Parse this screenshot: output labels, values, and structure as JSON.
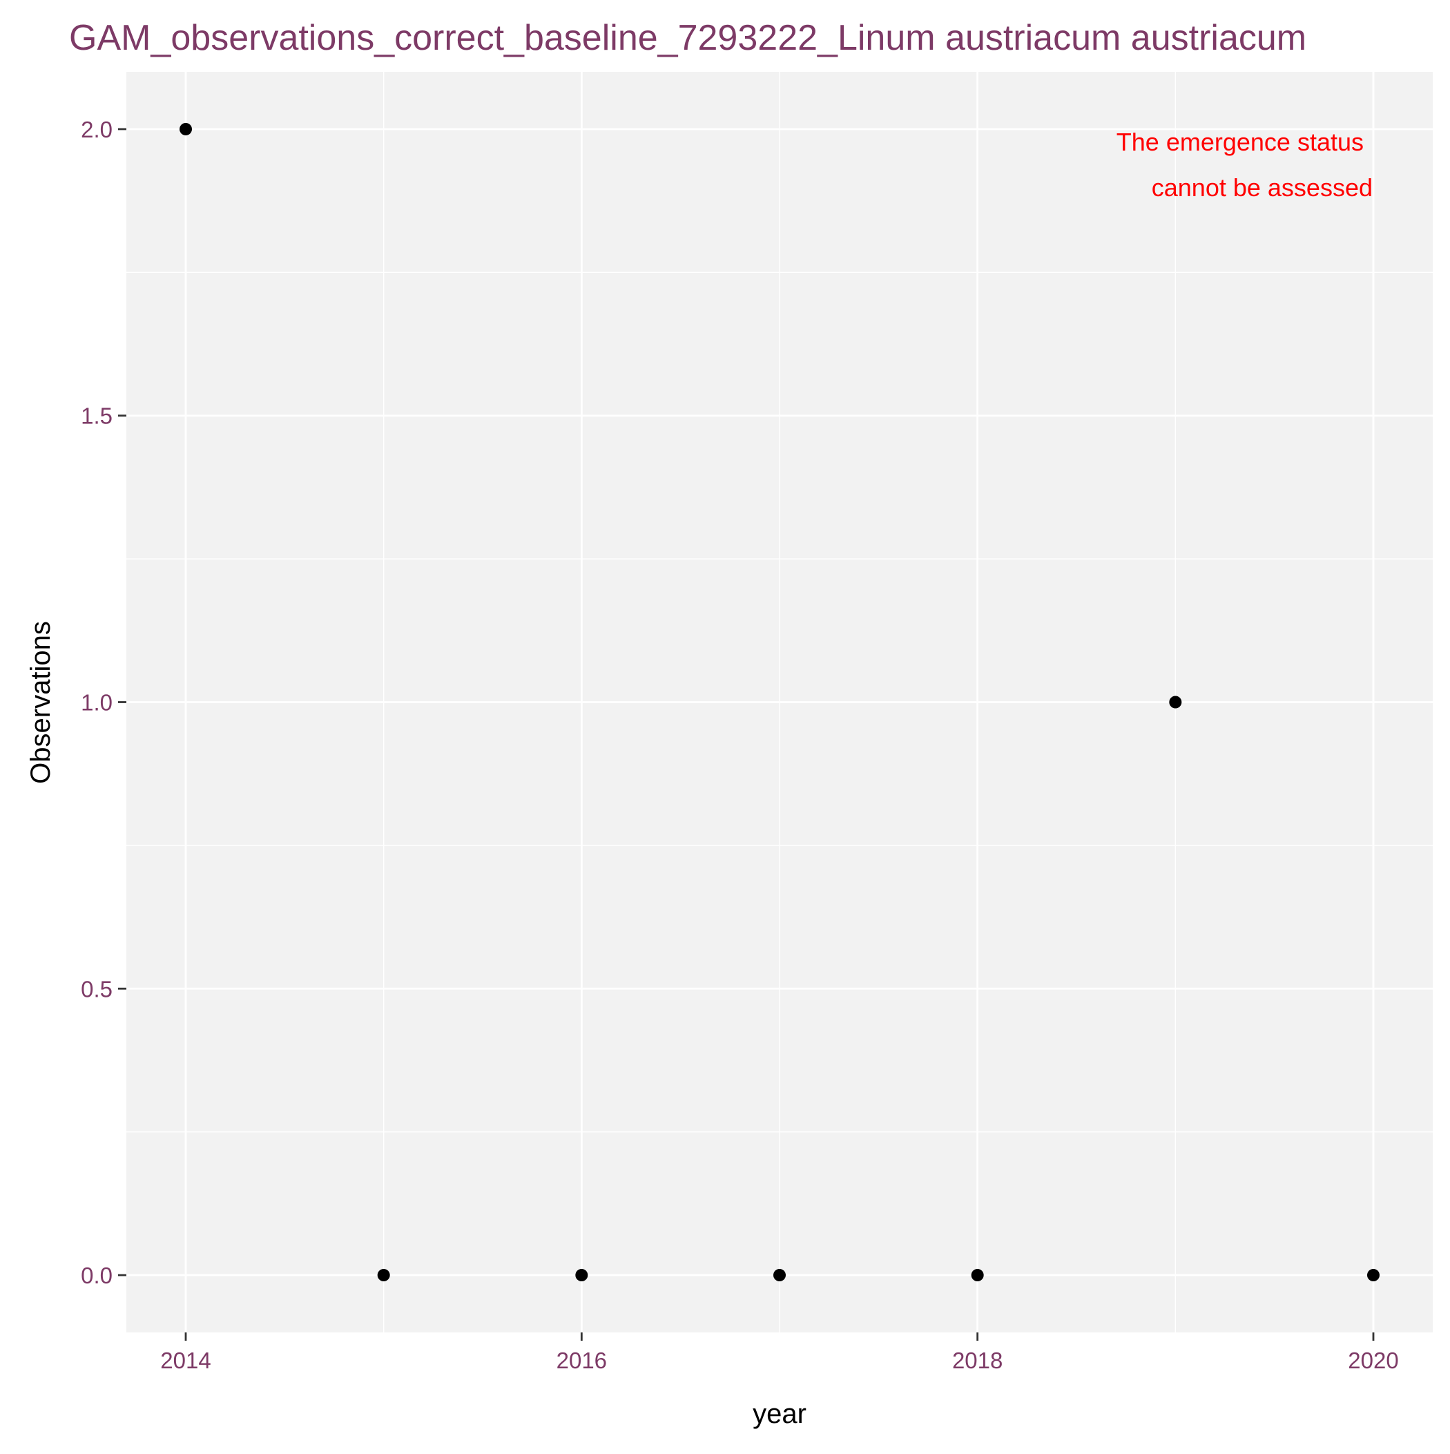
{
  "colors": {
    "title": "#7d3a66",
    "tick_label": "#7d3a66",
    "panel_background": "#f2f2f2",
    "grid": "#ffffff",
    "point": "#000000",
    "annotation": "#ff0000",
    "axis_title": "#000000"
  },
  "chart_data": {
    "type": "scatter",
    "title": "GAM_observations_correct_baseline_7293222_Linum austriacum austriacum",
    "xlabel": "year",
    "ylabel": "Observations",
    "x": [
      2014,
      2015,
      2016,
      2017,
      2018,
      2019,
      2020
    ],
    "y": [
      2,
      0,
      0,
      0,
      0,
      1,
      0
    ],
    "xlim": [
      2013.7,
      2020.3
    ],
    "ylim": [
      -0.1,
      2.1
    ],
    "x_ticks": [
      2014,
      2016,
      2018,
      2020
    ],
    "y_ticks": [
      0.0,
      0.5,
      1.0,
      1.5,
      2.0
    ],
    "x_tick_labels": [
      "2014",
      "2016",
      "2018",
      "2020"
    ],
    "y_tick_labels": [
      "0.0",
      "0.5",
      "1.0",
      "1.5",
      "2.0"
    ],
    "grid": true,
    "annotation": [
      "The emergence status",
      "cannot be assessed"
    ]
  }
}
